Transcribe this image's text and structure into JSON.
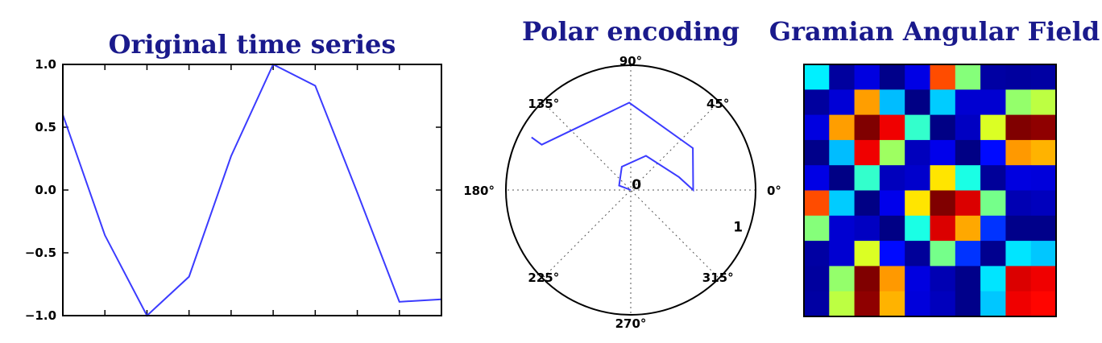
{
  "chart_data": [
    {
      "type": "line",
      "title": "Original time series",
      "x": [
        0,
        1,
        2,
        3,
        4,
        5,
        6,
        7,
        8,
        9
      ],
      "values": [
        0.6,
        -0.36,
        -1.0,
        -0.69,
        0.27,
        1.0,
        0.83,
        -0.02,
        -0.89,
        -0.87
      ],
      "ylim": [
        -1.0,
        1.0
      ],
      "yticks": [
        "1.0",
        "0.5",
        "0.0",
        "−0.5",
        "−1.0"
      ],
      "line_color": "#3b3bff",
      "grid": false
    },
    {
      "type": "line",
      "projection": "polar",
      "title": "Polar encoding",
      "theta_deg": [
        127,
        159,
        111,
        66,
        15,
        0,
        34,
        91,
        153,
        152
      ],
      "r": [
        0.0,
        0.1,
        0.2,
        0.3,
        0.4,
        0.5,
        0.6,
        0.7,
        0.8,
        0.9
      ],
      "rmax": 1.0,
      "angle_labels": [
        "0°",
        "45°",
        "90°",
        "135°",
        "180°",
        "225°",
        "270°",
        "315°"
      ],
      "radial_labels": [
        "0",
        "1"
      ],
      "line_color": "#3b3bff",
      "grid": true
    },
    {
      "type": "heatmap",
      "title": "Gramian Angular Field",
      "colormap": "jet",
      "vmin": -1.0,
      "vmax": 1.0,
      "z": [
        [
          -0.28,
          -0.94,
          -0.81,
          -0.98,
          -0.8,
          0.6,
          0.01,
          -0.93,
          -0.94,
          -0.93
        ],
        [
          -0.94,
          -0.83,
          0.44,
          -0.38,
          -0.99,
          -0.35,
          -0.84,
          -0.84,
          0.04,
          0.12
        ],
        [
          -0.81,
          0.44,
          1.0,
          0.78,
          -0.15,
          -0.99,
          -0.87,
          0.18,
          1.0,
          0.97
        ],
        [
          -0.98,
          -0.38,
          0.78,
          0.06,
          -0.88,
          -0.79,
          -0.99,
          -0.73,
          0.45,
          0.4
        ],
        [
          -0.8,
          -0.99,
          -0.15,
          -0.88,
          -0.85,
          0.3,
          -0.2,
          -0.95,
          -0.81,
          -0.82
        ],
        [
          0.6,
          -0.35,
          -0.99,
          -0.79,
          0.3,
          1.0,
          0.82,
          -0.02,
          -0.9,
          -0.88
        ],
        [
          0.01,
          -0.84,
          -0.87,
          -0.99,
          -0.2,
          0.82,
          0.42,
          -0.65,
          -0.98,
          -0.98
        ],
        [
          -0.93,
          -0.84,
          0.18,
          -0.73,
          -0.95,
          -0.02,
          -0.65,
          -0.97,
          -0.3,
          -0.36
        ],
        [
          -0.94,
          0.04,
          1.0,
          0.45,
          -0.81,
          -0.9,
          -0.98,
          -0.3,
          0.82,
          0.78
        ],
        [
          -0.93,
          0.12,
          0.97,
          0.4,
          -0.82,
          -0.88,
          -0.98,
          -0.36,
          0.78,
          0.74
        ]
      ]
    }
  ]
}
